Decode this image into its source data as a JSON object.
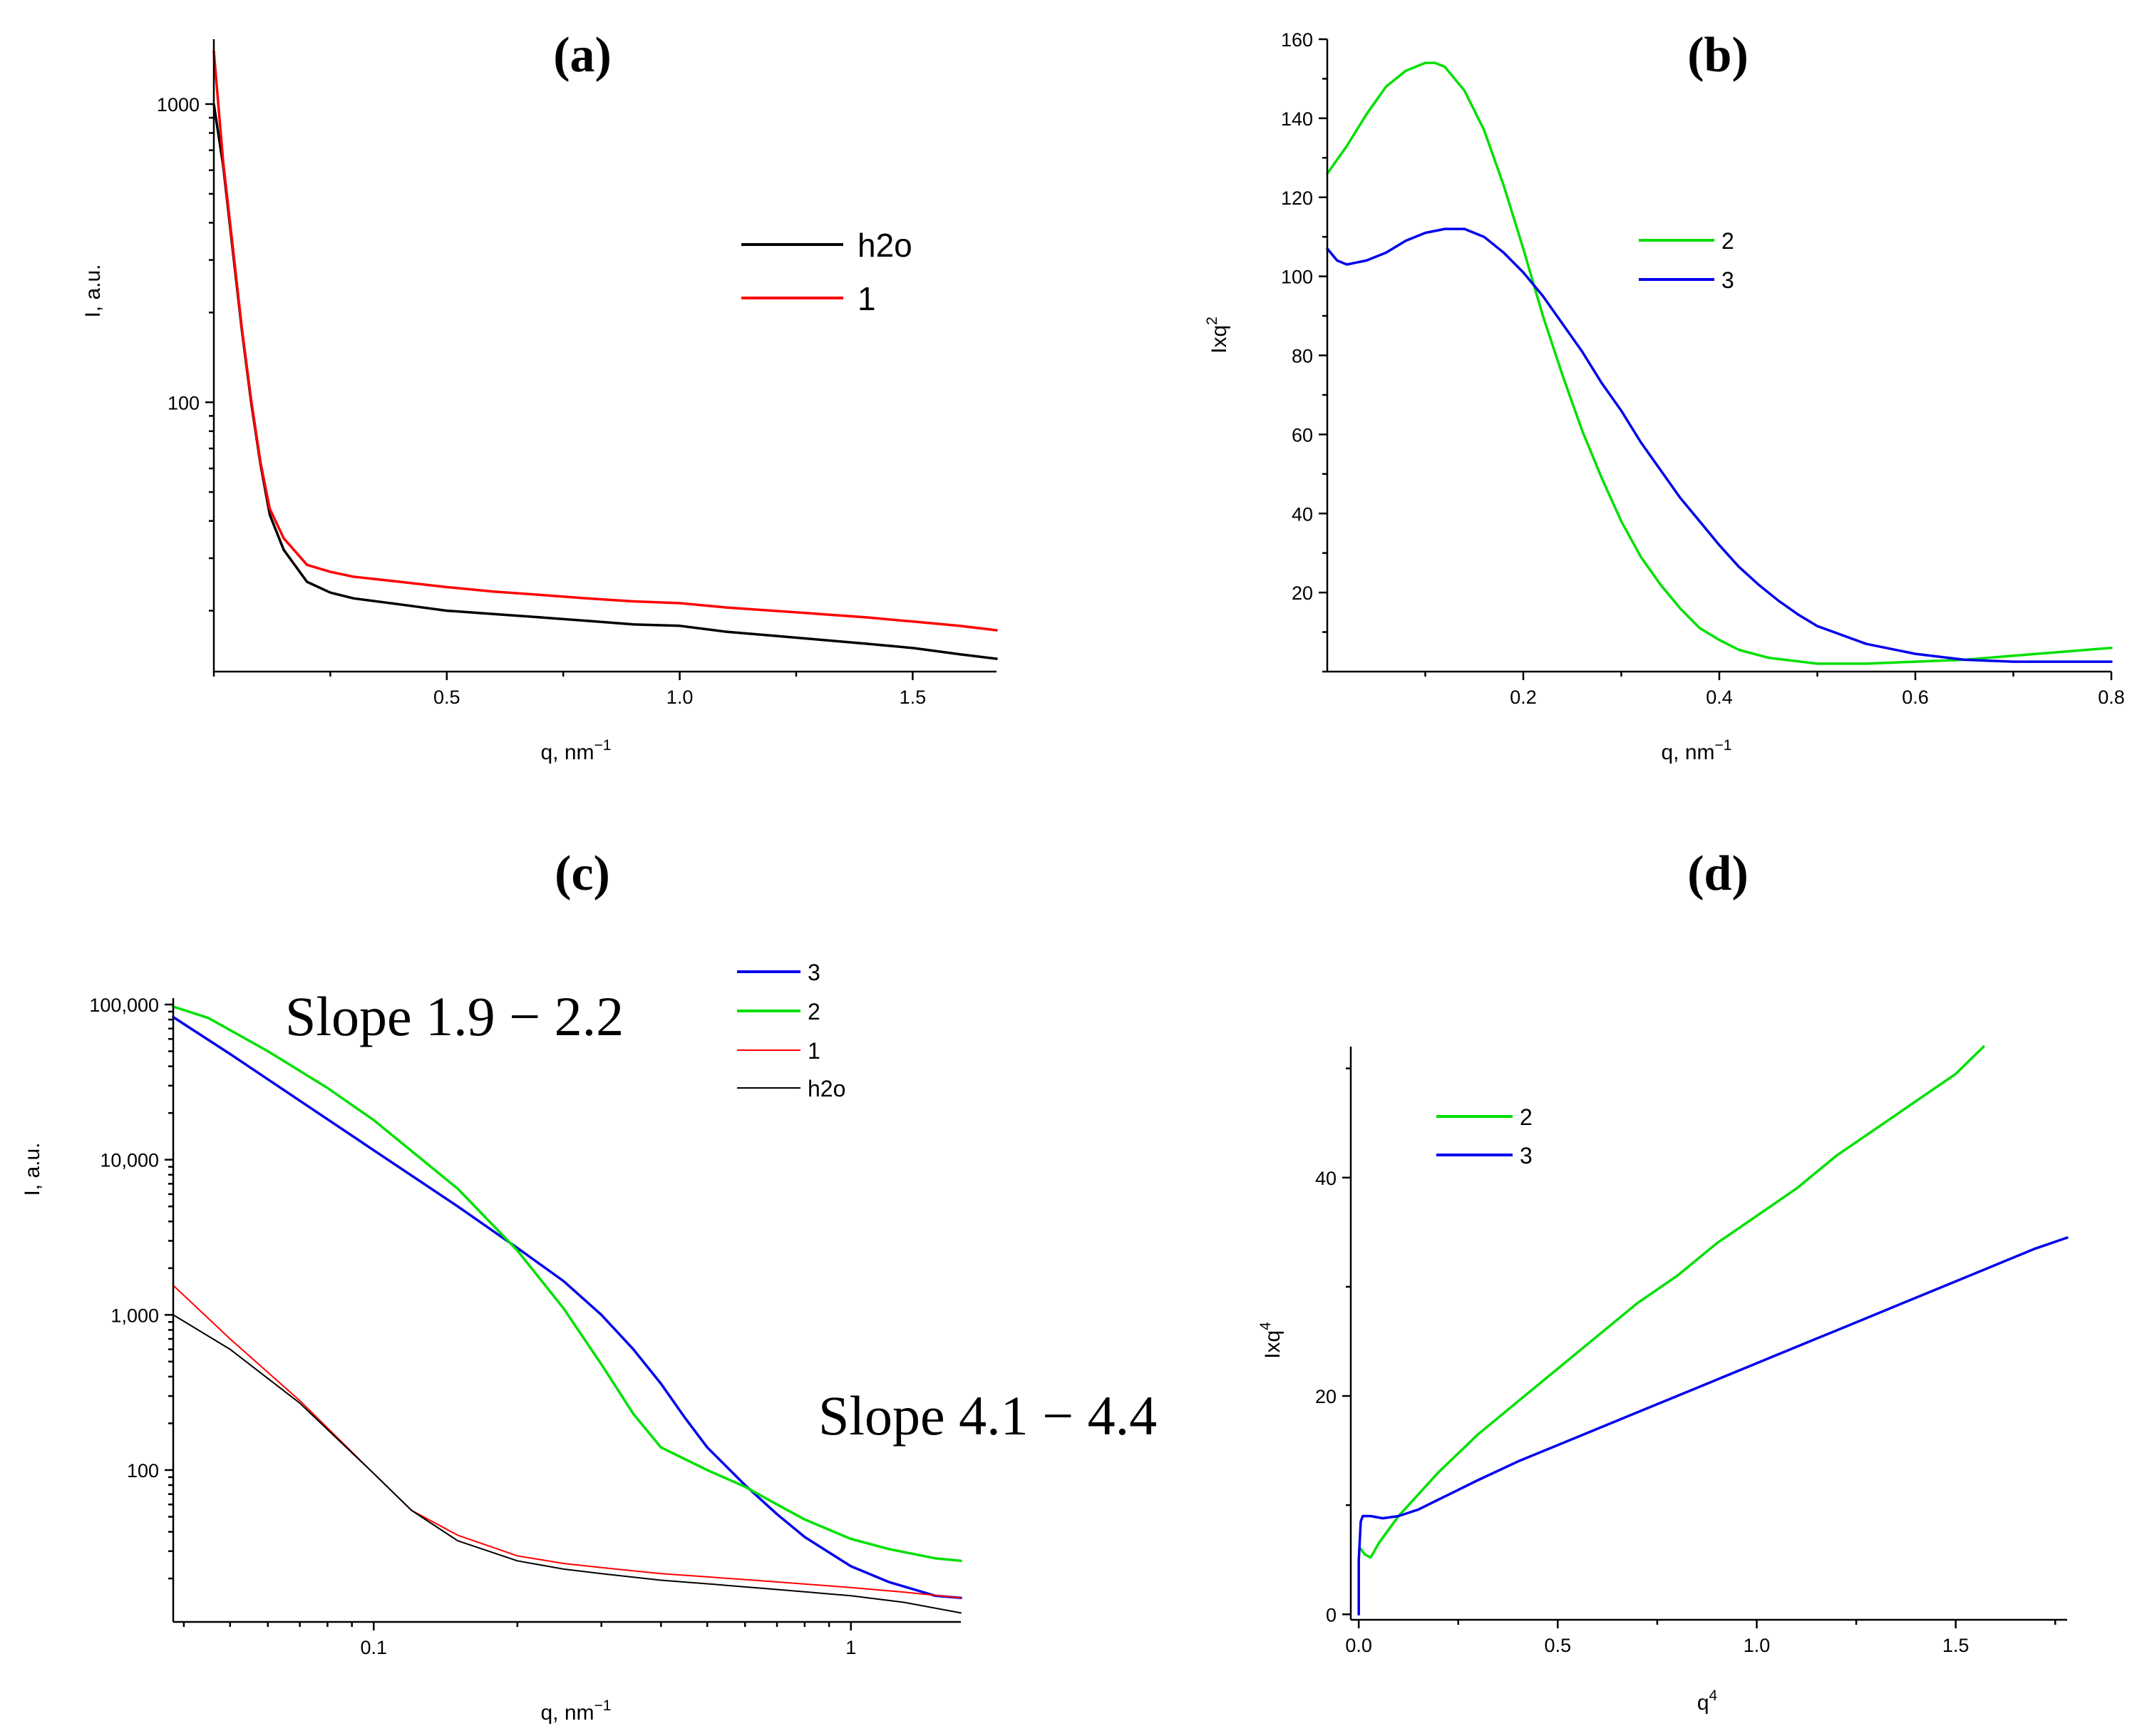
{
  "chart_data": [
    {
      "id": "a",
      "type": "line",
      "title": "(a)",
      "xlabel": "q, nm",
      "xlabel_sup": "−1",
      "ylabel": "I, a.u.",
      "x_scale": "linear",
      "y_scale": "log",
      "xlim": [
        0.0,
        1.68
      ],
      "ylim": [
        12.5,
        1650
      ],
      "x_ticks": [
        0.5,
        1.0,
        1.5
      ],
      "x_tick_labels": [
        "0.5",
        "1.0",
        "1.5"
      ],
      "y_ticks": [
        100,
        1000
      ],
      "y_tick_labels": [
        "100",
        "1000"
      ],
      "legend_position": "top-right",
      "series": [
        {
          "name": "h2o",
          "color": "#000000",
          "x": [
            0.0,
            0.02,
            0.04,
            0.06,
            0.08,
            0.1,
            0.12,
            0.15,
            0.2,
            0.25,
            0.3,
            0.4,
            0.5,
            0.6,
            0.7,
            0.8,
            0.9,
            1.0,
            1.1,
            1.2,
            1.3,
            1.4,
            1.5,
            1.6,
            1.68
          ],
          "y": [
            1000,
            620,
            330,
            175,
            100,
            62,
            42,
            32,
            25,
            23,
            22,
            21,
            20,
            19.5,
            19,
            18.5,
            18,
            17.8,
            17,
            16.5,
            16,
            15.5,
            15,
            14.3,
            13.8
          ]
        },
        {
          "name": "1",
          "color": "#ff0000",
          "x": [
            0.0,
            0.02,
            0.04,
            0.06,
            0.08,
            0.1,
            0.12,
            0.15,
            0.2,
            0.25,
            0.3,
            0.4,
            0.5,
            0.6,
            0.7,
            0.8,
            0.9,
            1.0,
            1.1,
            1.2,
            1.3,
            1.4,
            1.5,
            1.6,
            1.68
          ],
          "y": [
            1500,
            640,
            340,
            178,
            102,
            63,
            44,
            35,
            28.5,
            27,
            26,
            25,
            24,
            23.2,
            22.6,
            22,
            21.5,
            21.2,
            20.5,
            20,
            19.5,
            19,
            18.4,
            17.8,
            17.2
          ]
        }
      ]
    },
    {
      "id": "b",
      "type": "line",
      "title": "(b)",
      "xlabel": "q, nm",
      "xlabel_sup": "−1",
      "ylabel": "Ixq",
      "ylabel_sup": "2",
      "x_scale": "linear",
      "y_scale": "linear",
      "xlim": [
        0.0,
        0.8
      ],
      "ylim": [
        0,
        160
      ],
      "x_ticks": [
        0.2,
        0.4,
        0.6,
        0.8
      ],
      "x_tick_labels": [
        "0.2",
        "0.4",
        "0.6",
        "0.8"
      ],
      "y_ticks": [
        20,
        40,
        60,
        80,
        100,
        120,
        140,
        160
      ],
      "y_tick_labels": [
        "20",
        "40",
        "60",
        "80",
        "100",
        "120",
        "140",
        "160"
      ],
      "legend_position": "top-center",
      "series": [
        {
          "name": "2",
          "color": "#00e000",
          "x": [
            0.0,
            0.02,
            0.04,
            0.06,
            0.08,
            0.1,
            0.11,
            0.12,
            0.14,
            0.16,
            0.18,
            0.2,
            0.22,
            0.24,
            0.26,
            0.28,
            0.3,
            0.32,
            0.34,
            0.36,
            0.38,
            0.4,
            0.42,
            0.45,
            0.5,
            0.55,
            0.6,
            0.65,
            0.7,
            0.75,
            0.8
          ],
          "y": [
            126,
            133,
            141,
            148,
            152,
            154,
            154,
            153,
            147,
            137,
            123,
            107,
            90,
            75,
            61,
            49,
            38,
            29,
            22,
            16,
            11,
            8,
            5.5,
            3.5,
            2,
            2,
            2.5,
            3,
            4,
            5,
            6
          ]
        },
        {
          "name": "3",
          "color": "#0000ee",
          "x": [
            0.0,
            0.01,
            0.02,
            0.04,
            0.06,
            0.08,
            0.1,
            0.12,
            0.14,
            0.16,
            0.18,
            0.2,
            0.22,
            0.24,
            0.26,
            0.28,
            0.3,
            0.32,
            0.34,
            0.36,
            0.38,
            0.4,
            0.42,
            0.44,
            0.46,
            0.48,
            0.5,
            0.55,
            0.6,
            0.65,
            0.7,
            0.75,
            0.8
          ],
          "y": [
            107,
            104,
            103,
            104,
            106,
            109,
            111,
            112,
            112,
            110,
            106,
            101,
            95,
            88,
            81,
            73,
            66,
            58,
            51,
            44,
            38,
            32,
            26.5,
            22,
            18,
            14.5,
            11.5,
            7,
            4.5,
            3,
            2.5,
            2.5,
            2.5
          ]
        }
      ]
    },
    {
      "id": "c",
      "type": "line",
      "title": "(c)",
      "xlabel": "q, nm",
      "xlabel_sup": "−1",
      "ylabel": "I, a.u.",
      "x_scale": "log",
      "y_scale": "log",
      "xlim": [
        0.038,
        1.7
      ],
      "ylim": [
        10.5,
        110000
      ],
      "x_ticks": [
        0.1,
        1
      ],
      "x_tick_labels": [
        "0.1",
        "1"
      ],
      "y_ticks": [
        100,
        1000,
        10000,
        100000
      ],
      "y_tick_labels": [
        "100",
        "1,000",
        "10,000",
        "100,000"
      ],
      "legend_position": "top-right",
      "annotations": [
        "Slope 1.9 − 2.2",
        "Slope 4.1 − 4.4"
      ],
      "series": [
        {
          "name": "3",
          "color": "#0000ee",
          "x": [
            0.038,
            0.05,
            0.07,
            0.1,
            0.15,
            0.2,
            0.25,
            0.3,
            0.35,
            0.4,
            0.45,
            0.5,
            0.6,
            0.7,
            0.8,
            1.0,
            1.2,
            1.5,
            1.7
          ],
          "y": [
            83000,
            48000,
            24000,
            11500,
            5000,
            2700,
            1650,
            1000,
            600,
            360,
            215,
            140,
            80,
            52,
            37,
            24,
            19,
            15.5,
            15
          ]
        },
        {
          "name": "2",
          "color": "#00e000",
          "x": [
            0.038,
            0.045,
            0.06,
            0.08,
            0.1,
            0.15,
            0.2,
            0.25,
            0.3,
            0.35,
            0.4,
            0.5,
            0.6,
            0.7,
            0.8,
            1.0,
            1.2,
            1.5,
            1.7
          ],
          "y": [
            97000,
            82000,
            50000,
            29000,
            18000,
            6500,
            2600,
            1100,
            480,
            230,
            140,
            100,
            78,
            60,
            48,
            36,
            31,
            27,
            26
          ]
        },
        {
          "name": "1",
          "color": "#ff0000",
          "x": [
            0.038,
            0.05,
            0.07,
            0.1,
            0.12,
            0.15,
            0.2,
            0.25,
            0.3,
            0.4,
            0.5,
            0.7,
            1.0,
            1.3,
            1.7
          ],
          "y": [
            1550,
            700,
            280,
            95,
            55,
            38,
            28,
            25,
            23.5,
            21.5,
            20.5,
            19,
            17.5,
            16.3,
            15
          ]
        },
        {
          "name": "h2o",
          "color": "#000000",
          "x": [
            0.038,
            0.05,
            0.07,
            0.1,
            0.12,
            0.15,
            0.2,
            0.25,
            0.3,
            0.4,
            0.5,
            0.7,
            1.0,
            1.3,
            1.7
          ],
          "y": [
            1000,
            600,
            270,
            95,
            55,
            35,
            26,
            23,
            21.5,
            19.5,
            18.5,
            17,
            15.5,
            14,
            12
          ]
        }
      ]
    },
    {
      "id": "d",
      "type": "line",
      "title": "(d)",
      "xlabel": "q",
      "xlabel_sup": "4",
      "ylabel": "Ixq",
      "ylabel_sup": "4",
      "x_scale": "linear",
      "y_scale": "linear",
      "xlim": [
        -0.02,
        1.78
      ],
      "ylim": [
        -0.5,
        52
      ],
      "x_ticks": [
        0.0,
        0.5,
        1.0,
        1.5
      ],
      "x_tick_labels": [
        "0.0",
        "0.5",
        "1.0",
        "1.5"
      ],
      "y_ticks": [
        0,
        20,
        40
      ],
      "y_tick_labels": [
        "0",
        "20",
        "40"
      ],
      "legend_position": "top-left",
      "series": [
        {
          "name": "2",
          "color": "#00e000",
          "x": [
            0.005,
            0.015,
            0.03,
            0.05,
            0.08,
            0.1,
            0.15,
            0.2,
            0.3,
            0.4,
            0.5,
            0.6,
            0.7,
            0.8,
            0.9,
            1.0,
            1.1,
            1.2,
            1.3,
            1.4,
            1.5,
            1.57
          ],
          "y": [
            6,
            5.5,
            5.2,
            6.5,
            8,
            9,
            11,
            13,
            16.5,
            19.5,
            22.5,
            25.5,
            28.5,
            31,
            34,
            36.5,
            39,
            42,
            44.5,
            47,
            49.5,
            52
          ]
        },
        {
          "name": "3",
          "color": "#0000ee",
          "x": [
            0.0,
            0.0,
            0.005,
            0.01,
            0.03,
            0.06,
            0.1,
            0.15,
            0.2,
            0.3,
            0.4,
            0.5,
            0.6,
            0.7,
            0.8,
            0.9,
            1.0,
            1.1,
            1.2,
            1.3,
            1.4,
            1.5,
            1.6,
            1.7,
            1.78
          ],
          "y": [
            0,
            5,
            8.5,
            9,
            9,
            8.8,
            9,
            9.6,
            10.5,
            12.3,
            14,
            15.5,
            17,
            18.5,
            20,
            21.5,
            23,
            24.5,
            26,
            27.5,
            29,
            30.5,
            32,
            33.5,
            34.5
          ]
        }
      ]
    }
  ]
}
